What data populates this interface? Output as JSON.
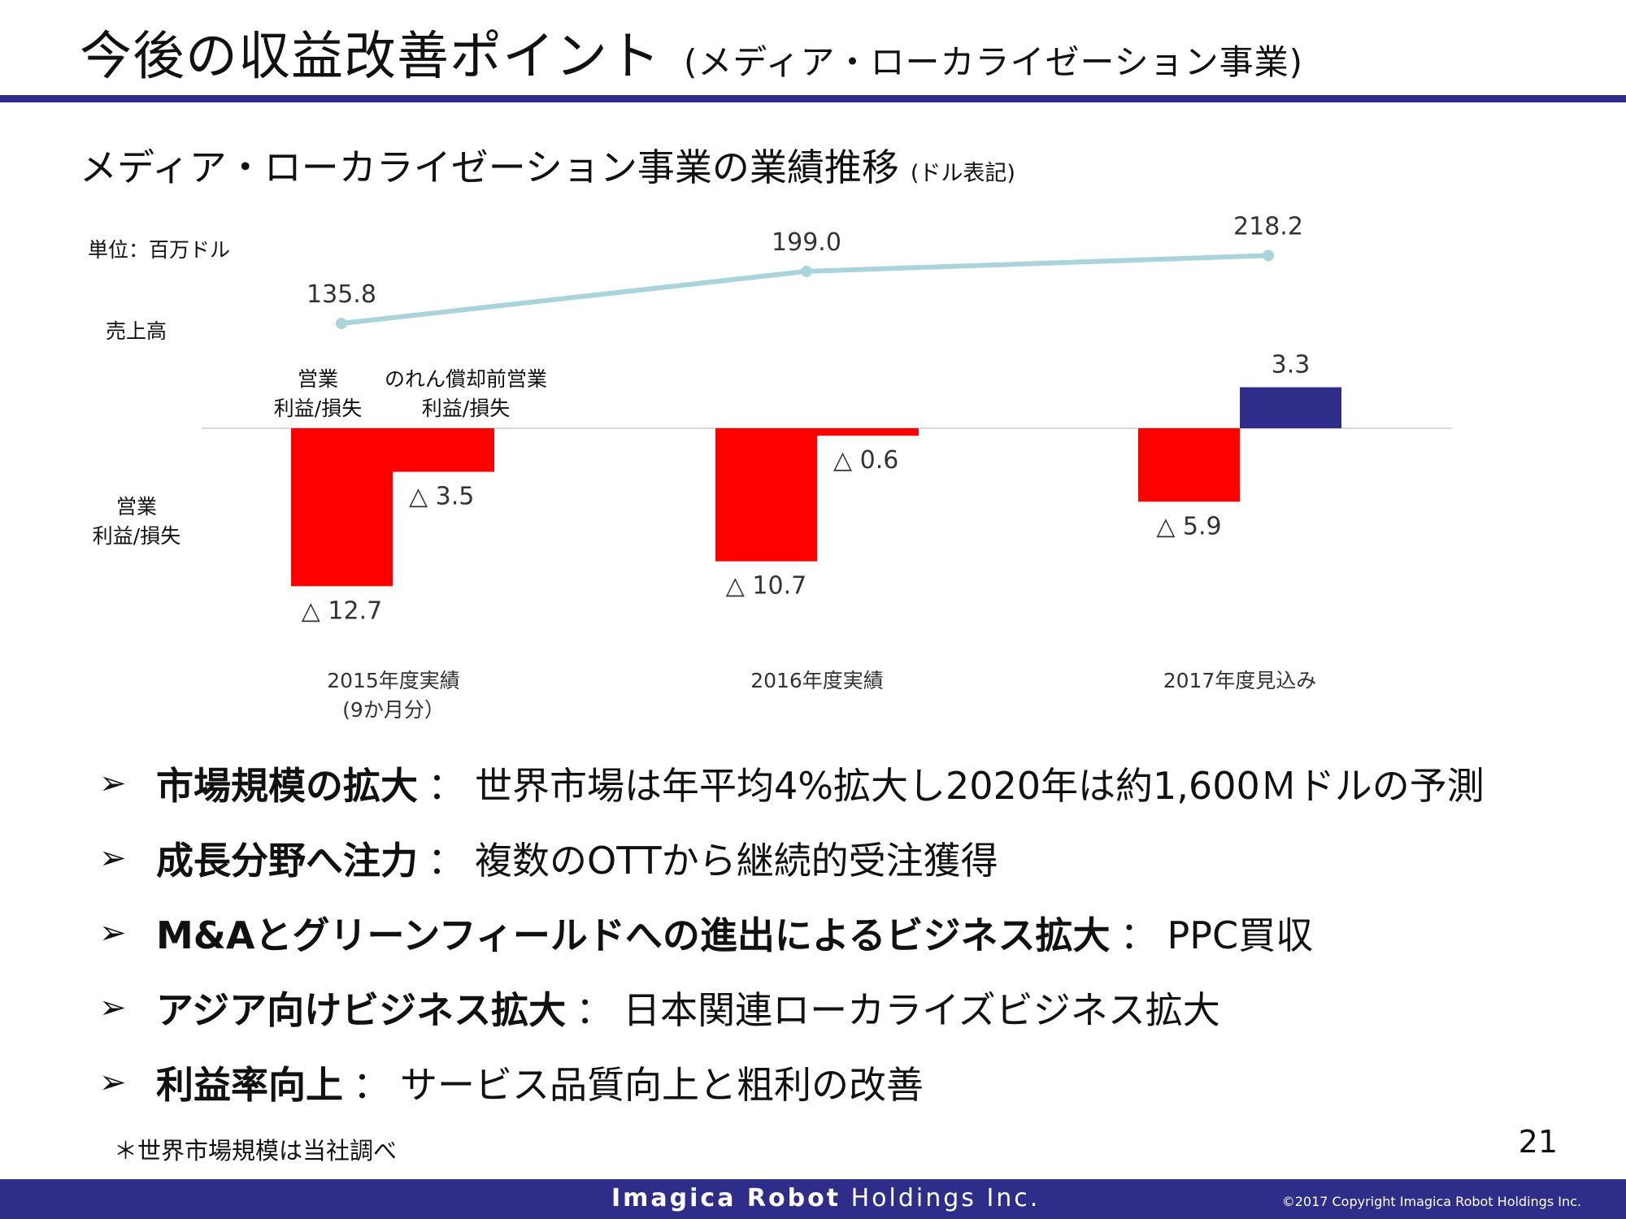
{
  "header": {
    "title": "今後の収益改善ポイント",
    "subtitle": "(メディア・ローカライゼーション事業)"
  },
  "chart": {
    "title": "メディア・ローカライゼーション事業の業績推移",
    "title_note": "(ドル表記)",
    "unit_label": "単位：百万ドル",
    "revenue_row_label": "売上高",
    "profit_row_label_line1": "営業",
    "profit_row_label_line2": "利益/損失",
    "legend_operating_line1": "営業",
    "legend_operating_line2": "利益/損失",
    "legend_pre_goodwill_line1": "のれん償却前営業",
    "legend_pre_goodwill_line2": "利益/損失",
    "period_2015_line1": "2015年度実績",
    "period_2015_line2": "(9か月分）",
    "period_2016": "2016年度実績",
    "period_2017": "2017年度見込み",
    "revenue_labels": [
      "135.8",
      "199.0",
      "218.2"
    ],
    "operating_labels": [
      "△ 12.7",
      "△ 10.7",
      "△ 5.9"
    ],
    "pre_goodwill_labels": [
      "△ 3.5",
      "△ 0.6",
      "3.3"
    ]
  },
  "chart_data": {
    "type": "bar",
    "title": "メディア・ローカライゼーション事業の業績推移",
    "categories": [
      "2015年度実績 (9か月分）",
      "2016年度実績",
      "2017年度見込み"
    ],
    "series": [
      {
        "name": "売上高",
        "type": "line",
        "values": [
          135.8,
          199.0,
          218.2
        ]
      },
      {
        "name": "営業利益/損失",
        "type": "bar",
        "values": [
          -12.7,
          -10.7,
          -5.9
        ]
      },
      {
        "name": "のれん償却前営業利益/損失",
        "type": "bar",
        "values": [
          -3.5,
          -0.6,
          3.3
        ]
      }
    ],
    "unit": "単位：百万ドル",
    "colors": {
      "revenue_line": "#a9d4dc",
      "loss_bar": "#ff0000",
      "profit_bar": "#2e2e8a"
    }
  },
  "bullets": [
    {
      "head": "市場規模の拡大",
      "text": "世界市場は年平均4%拡大し2020年は約1,600Ｍドルの予測"
    },
    {
      "head": "成長分野へ注力",
      "text": "複数のOTTから継続的受注獲得"
    },
    {
      "head": "M&Aとグリーンフィールドへの進出によるビジネス拡大",
      "text": "PPC買収"
    },
    {
      "head": "アジア向けビジネス拡大",
      "text": "日本関連ローカライズビジネス拡大"
    },
    {
      "head": "利益率向上",
      "text": "サービス品質向上と粗利の改善"
    }
  ],
  "bullet_arrow": "➢",
  "bullet_separator": "：",
  "footnote": "＊世界市場規模は当社調べ",
  "page_number": "21",
  "footer": {
    "brand_bold": "Imagica Robot",
    "brand_regular": "Holdings Inc.",
    "copyright": "©2017  Copyright Imagica Robot Holdings Inc."
  }
}
